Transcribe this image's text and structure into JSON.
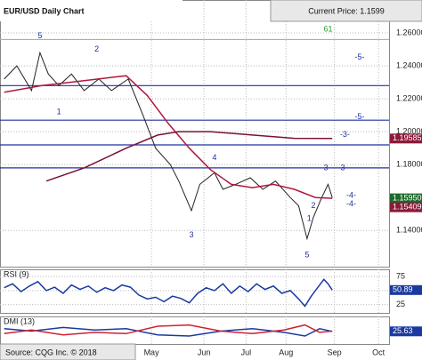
{
  "header": {
    "title": "EUR/USD Daily Chart",
    "price": "Current Price: 1.1599"
  },
  "footer": {
    "source": "Source: CQG Inc. © 2018"
  },
  "chart_data": [
    {
      "type": "line",
      "xlim": [
        0,
        185
      ],
      "ylim": [
        1.118,
        1.28
      ],
      "xticks": [
        {
          "value": 72,
          "label": "May"
        },
        {
          "value": 97,
          "label": "Jun"
        },
        {
          "value": 117,
          "label": "Jul"
        },
        {
          "value": 136,
          "label": "Aug"
        },
        {
          "value": 159,
          "label": "Sep"
        },
        {
          "value": 180,
          "label": "Oct"
        }
      ],
      "yticks": [
        {
          "value": 1.26,
          "label": "1.26000"
        },
        {
          "value": 1.24,
          "label": "1.24000"
        },
        {
          "value": 1.22,
          "label": "1.22000"
        },
        {
          "value": 1.2,
          "label": "1.20000"
        },
        {
          "value": 1.18,
          "label": "1.18000"
        },
        {
          "value": 1.14,
          "label": "1.14000"
        }
      ],
      "series": [
        {
          "color": "#222222",
          "x": [
            2,
            8,
            15,
            19,
            23,
            28,
            34,
            40,
            47,
            53,
            61,
            68,
            74,
            81,
            85,
            91,
            95,
            102,
            106,
            112,
            119,
            125,
            131,
            138,
            142,
            146,
            149,
            153,
            156,
            158
          ],
          "values": [
            1.232,
            1.24,
            1.225,
            1.248,
            1.235,
            1.228,
            1.235,
            1.225,
            1.232,
            1.225,
            1.232,
            1.21,
            1.19,
            1.18,
            1.17,
            1.152,
            1.168,
            1.175,
            1.165,
            1.168,
            1.172,
            1.165,
            1.17,
            1.16,
            1.155,
            1.135,
            1.148,
            1.16,
            1.168,
            1.1599
          ]
        },
        {
          "color": "#b0183c",
          "x": [
            2,
            20,
            40,
            60,
            70,
            80,
            90,
            100,
            110,
            120,
            130,
            140,
            150,
            158
          ],
          "values": [
            1.224,
            1.228,
            1.231,
            1.234,
            1.222,
            1.205,
            1.19,
            1.177,
            1.168,
            1.166,
            1.168,
            1.165,
            1.16,
            1.1595
          ]
        },
        {
          "color": "#7a1038",
          "x": [
            22,
            40,
            60,
            75,
            85,
            100,
            120,
            140,
            158
          ],
          "values": [
            1.17,
            1.178,
            1.19,
            1.198,
            1.2,
            1.2,
            1.198,
            1.196,
            1.19585
          ]
        }
      ],
      "hlines": [
        {
          "value": 1.256,
          "color": "#7fd07f"
        },
        {
          "value": 1.228,
          "color": "#2030a0"
        },
        {
          "value": 1.207,
          "color": "#2030a0"
        },
        {
          "value": 1.192,
          "color": "#2030a0"
        },
        {
          "value": 1.178,
          "color": "#2030a0"
        }
      ],
      "annotations": [
        {
          "text": "5",
          "x": 19,
          "y": 1.258,
          "color": "#2030a0"
        },
        {
          "text": "2",
          "x": 46,
          "y": 1.25,
          "color": "#2030a0"
        },
        {
          "text": "1",
          "x": 28,
          "y": 1.212,
          "color": "#2030a0"
        },
        {
          "text": "4",
          "x": 102,
          "y": 1.184,
          "color": "#2030a0"
        },
        {
          "text": "3",
          "x": 91,
          "y": 1.137,
          "color": "#2030a0"
        },
        {
          "text": "3",
          "x": 155,
          "y": 1.178,
          "color": "#2030a0"
        },
        {
          "text": "5",
          "x": 146,
          "y": 1.125,
          "color": "#2030a0"
        },
        {
          "text": "1",
          "x": 147,
          "y": 1.147,
          "color": "#2030a0"
        },
        {
          "text": "2",
          "x": 149,
          "y": 1.155,
          "color": "#2030a0"
        },
        {
          "text": "61",
          "x": 156,
          "y": 1.262,
          "color": "#2a9a2a"
        },
        {
          "text": "-5-",
          "x": 171,
          "y": 1.245,
          "color": "#2030a0"
        },
        {
          "text": "-5-",
          "x": 171,
          "y": 1.209,
          "color": "#2030a0"
        },
        {
          "text": "-3-",
          "x": 164,
          "y": 1.198,
          "color": "#2030a0"
        },
        {
          "text": "-3-",
          "x": 163,
          "y": 1.178,
          "color": "#2030a0"
        },
        {
          "text": "-4-",
          "x": 167,
          "y": 1.161,
          "color": "#2030a0"
        },
        {
          "text": "-4-",
          "x": 167,
          "y": 1.156,
          "color": "#2030a0"
        }
      ],
      "tags": [
        {
          "value": 1.19585,
          "label": "1.19585",
          "color": "#8b1a3a"
        },
        {
          "value": 1.1595,
          "label": "1.15950",
          "color": "#1a6b2a"
        },
        {
          "value": 1.15409,
          "label": "1.15409",
          "color": "#8b1a3a"
        }
      ]
    },
    {
      "type": "line",
      "title": "RSI (9)",
      "xlim": [
        0,
        185
      ],
      "ylim": [
        10,
        88
      ],
      "yticks": [
        75,
        50,
        25
      ],
      "series": [
        {
          "color": "#1a3aa0",
          "x": [
            2,
            6,
            10,
            14,
            18,
            22,
            26,
            30,
            34,
            38,
            42,
            46,
            50,
            54,
            58,
            62,
            66,
            70,
            74,
            78,
            82,
            86,
            90,
            94,
            98,
            102,
            106,
            110,
            114,
            118,
            122,
            126,
            130,
            134,
            138,
            142,
            145,
            148,
            151,
            154,
            156,
            158
          ],
          "values": [
            55,
            62,
            48,
            58,
            66,
            50,
            56,
            45,
            60,
            52,
            58,
            47,
            55,
            50,
            60,
            56,
            42,
            35,
            38,
            30,
            40,
            36,
            28,
            45,
            55,
            50,
            62,
            45,
            58,
            48,
            62,
            52,
            58,
            45,
            50,
            35,
            22,
            40,
            55,
            70,
            62,
            50.89
          ]
        }
      ],
      "tags": [
        {
          "value": 50.89,
          "label": "50.89",
          "color": "#1a3aa0"
        }
      ]
    },
    {
      "type": "line",
      "title": "DMI (13)",
      "xlim": [
        0,
        185
      ],
      "ylim": [
        5,
        50
      ],
      "series": [
        {
          "color": "#1a3aa0",
          "x": [
            2,
            15,
            30,
            45,
            60,
            75,
            90,
            105,
            120,
            135,
            145,
            152,
            158
          ],
          "values": [
            30,
            26,
            32,
            28,
            30,
            20,
            18,
            26,
            30,
            24,
            18,
            30,
            25.63
          ]
        },
        {
          "color": "#d02030",
          "x": [
            2,
            15,
            30,
            45,
            60,
            75,
            90,
            105,
            120,
            135,
            145,
            152,
            158
          ],
          "values": [
            22,
            28,
            20,
            24,
            22,
            34,
            36,
            26,
            22,
            28,
            36,
            24,
            26
          ]
        }
      ],
      "tags": [
        {
          "value": 25.63,
          "label": "25.63",
          "color": "#1a3aa0"
        }
      ]
    }
  ]
}
